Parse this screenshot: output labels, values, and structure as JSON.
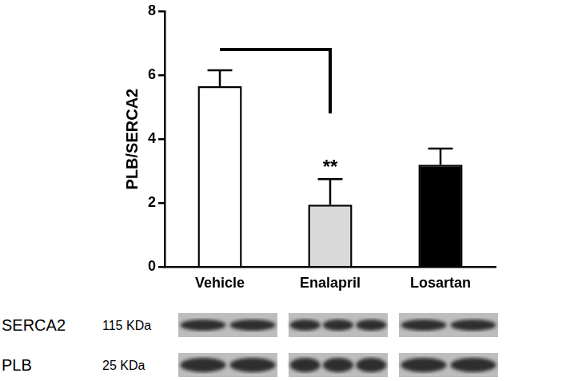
{
  "chart_data": {
    "type": "bar",
    "y_label": "PLB/SERCA2",
    "categories": [
      "Vehicle",
      "Enalapril",
      "Losartan"
    ],
    "values": [
      5.65,
      1.95,
      3.2
    ],
    "errors": [
      0.5,
      0.8,
      0.5
    ],
    "colors": [
      "#ffffff",
      "#d9d9d9",
      "#000000"
    ],
    "ylim": [
      0,
      8
    ],
    "yticks": [
      0,
      2,
      4,
      6,
      8
    ],
    "grid": false,
    "annotations": [
      {
        "text": "**",
        "category": "Enalapril"
      }
    ],
    "bracket": {
      "from": "Vehicle",
      "to": "Enalapril",
      "y": 6.8,
      "y_end": 4.8
    },
    "blots": [
      {
        "protein": "SERCA2",
        "size": "115 KDa"
      },
      {
        "protein": "PLB",
        "size": "25 KDa"
      }
    ]
  }
}
